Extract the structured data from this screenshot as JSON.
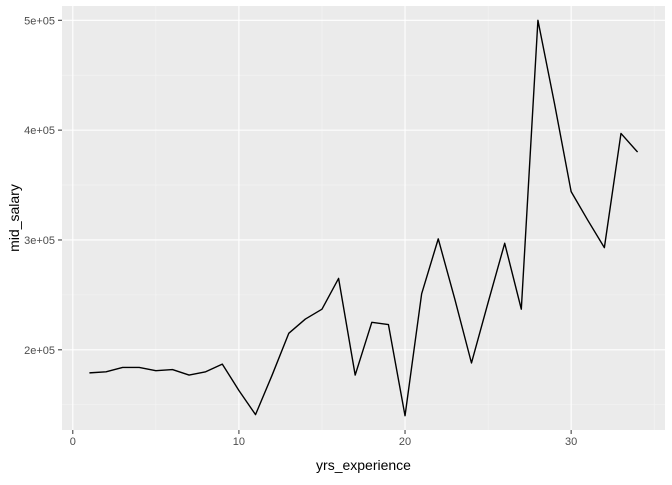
{
  "chart_data": {
    "type": "line",
    "xlabel": "yrs_experience",
    "ylabel": "mid_salary",
    "xlim": [
      -0.65,
      35.65
    ],
    "ylim": [
      127000,
      513000
    ],
    "x_ticks": [
      0,
      10,
      20,
      30
    ],
    "x_tick_labels": [
      "0",
      "10",
      "20",
      "30"
    ],
    "y_ticks": [
      200000,
      300000,
      400000,
      500000
    ],
    "y_tick_labels": [
      "2e+05",
      "3e+05",
      "4e+05",
      "5e+05"
    ],
    "grid": true,
    "legend": "none",
    "series": [
      {
        "x": [
          1,
          2,
          3,
          4,
          5,
          6,
          7,
          8,
          9,
          10,
          11,
          12,
          13,
          14,
          15,
          16,
          17,
          18,
          19,
          20,
          21,
          22,
          23,
          24,
          25,
          26,
          27,
          28,
          29,
          30,
          31,
          32,
          33,
          34
        ],
        "values": [
          179000,
          180000,
          184000,
          184000,
          181000,
          182000,
          177000,
          180000,
          187000,
          163000,
          141000,
          177000,
          215000,
          228000,
          237000,
          265000,
          177000,
          225000,
          223000,
          140000,
          251000,
          301000,
          246000,
          188000,
          243000,
          297000,
          237000,
          500000,
          424000,
          344000,
          318000,
          293000,
          397000,
          380000
        ]
      }
    ]
  },
  "colors": {
    "panel_bg": "#ebebeb",
    "grid_major": "#ffffff",
    "grid_minor": "#f5f5f5",
    "line": "#000000",
    "tick_text": "#4d4d4d",
    "tick_mark": "#333333"
  }
}
